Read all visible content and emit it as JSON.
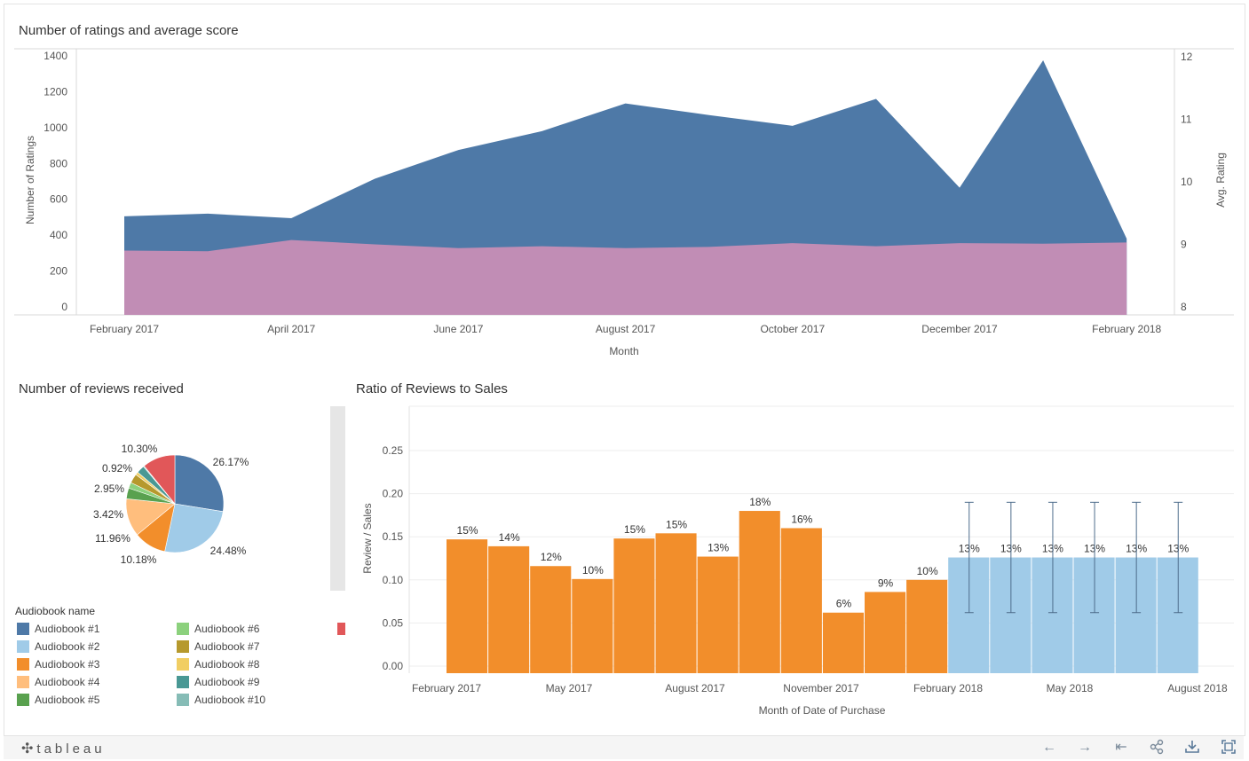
{
  "charts_titles": {
    "ratings": "Number of ratings and average score",
    "pie": "Number of reviews received",
    "ratio": "Ratio of Reviews to Sales"
  },
  "chart_data": [
    {
      "type": "area",
      "title": "Number of ratings and average score",
      "xlabel": "Month",
      "ylabel": "Number of Ratings",
      "y2label": "Avg. Rating",
      "x": [
        "2017-02",
        "2017-03",
        "2017-04",
        "2017-05",
        "2017-06",
        "2017-07",
        "2017-08",
        "2017-09",
        "2017-10",
        "2017-11",
        "2017-12",
        "2018-01",
        "2018-02"
      ],
      "x_tick_labels": [
        "February 2017",
        "April 2017",
        "June 2017",
        "August 2017",
        "October 2017",
        "December 2017",
        "February 2018"
      ],
      "y_ticks": [
        "0",
        "200",
        "400",
        "600",
        "800",
        "1000",
        "1200",
        "1400"
      ],
      "y2_ticks": [
        "8",
        "9",
        "10",
        "11",
        "12"
      ],
      "ylim": [
        0,
        1450
      ],
      "y2lim": [
        7.92,
        12.24
      ],
      "series": [
        {
          "values": [
            505,
            520,
            495,
            715,
            875,
            980,
            1135,
            1070,
            1010,
            1160,
            665,
            1375,
            380
          ],
          "color": "#4e79a7"
        },
        {
          "axis": "right",
          "values": [
            8.9,
            8.89,
            9.07,
            9.0,
            8.94,
            8.97,
            8.94,
            8.96,
            9.02,
            8.97,
            9.02,
            9.01,
            9.03
          ],
          "color": "#c18db5"
        }
      ]
    },
    {
      "type": "pie",
      "title": "Number of reviews received",
      "legend_title": "Audiobook name",
      "slices": [
        {
          "name": "Audiobook #1",
          "value": 26.17,
          "label": "26.17%",
          "color": "#4e79a7"
        },
        {
          "name": "Audiobook #2",
          "value": 24.48,
          "label": "24.48%",
          "color": "#a0cbe8"
        },
        {
          "name": "Audiobook #3",
          "value": 10.18,
          "label": "10.18%",
          "color": "#f28e2b"
        },
        {
          "name": "Audiobook #4",
          "value": 11.96,
          "label": "11.96%",
          "color": "#ffbe7d"
        },
        {
          "name": "Audiobook #5",
          "value": 3.42,
          "label": "3.42%",
          "color": "#59a14f"
        },
        {
          "name": "Audiobook #6",
          "value": 1.8,
          "label": "",
          "color": "#8cd17d"
        },
        {
          "name": "Audiobook #7",
          "value": 2.95,
          "label": "2.95%",
          "color": "#b6992d"
        },
        {
          "name": "Audiobook #8",
          "value": 0.92,
          "label": "0.92%",
          "color": "#f1ce63"
        },
        {
          "name": "Audiobook #9",
          "value": 2.5,
          "label": "",
          "color": "#499894"
        },
        {
          "name": "Audiobook #10",
          "value": 0.3,
          "label": "",
          "color": "#86bcb6"
        },
        {
          "name": "",
          "value": 10.3,
          "label": "10.30%",
          "color": "#e15759"
        }
      ]
    },
    {
      "type": "bar",
      "title": "Ratio of Reviews to Sales",
      "xlabel": "Month of Date of Purchase",
      "ylabel": "Review / Sales",
      "ylim": [
        0,
        0.3
      ],
      "y_ticks": [
        "0.00",
        "0.05",
        "0.10",
        "0.15",
        "0.20",
        "0.25"
      ],
      "x_tick_labels": [
        "February 2017",
        "May 2017",
        "August 2017",
        "November 2017",
        "February 2018",
        "May 2018",
        "August 2018"
      ],
      "categories": [
        "2017-02",
        "2017-03",
        "2017-04",
        "2017-05",
        "2017-06",
        "2017-07",
        "2017-08",
        "2017-09",
        "2017-10",
        "2017-11",
        "2017-12",
        "2018-01",
        "2018-02",
        "2018-03",
        "2018-04",
        "2018-05",
        "2018-06",
        "2018-07"
      ],
      "series": [
        {
          "name": "actual",
          "color": "#f28e2b",
          "values": [
            0.147,
            0.139,
            0.116,
            0.101,
            0.148,
            0.154,
            0.127,
            0.18,
            0.16,
            0.062,
            0.086,
            0.1,
            null,
            null,
            null,
            null,
            null,
            null
          ],
          "labels": [
            "15%",
            "14%",
            "12%",
            "10%",
            "15%",
            "15%",
            "13%",
            "18%",
            "16%",
            "6%",
            "9%",
            "10%",
            "",
            "",
            "",
            "",
            "",
            ""
          ]
        },
        {
          "name": "forecast",
          "color": "#a0cbe8",
          "values": [
            null,
            null,
            null,
            null,
            null,
            null,
            null,
            null,
            null,
            null,
            null,
            null,
            0.126,
            0.126,
            0.126,
            0.126,
            0.126,
            0.126
          ],
          "labels": [
            "",
            "",
            "",
            "",
            "",
            "",
            "",
            "",
            "",
            "",
            "",
            "",
            "13%",
            "13%",
            "13%",
            "13%",
            "13%",
            "13%"
          ],
          "error_low": 0.062,
          "error_high": 0.19
        }
      ]
    }
  ],
  "footer": {
    "logo_text": "tableau",
    "icons": [
      "undo-icon",
      "redo-icon",
      "revert-icon",
      "share-icon",
      "download-icon",
      "fullscreen-icon"
    ]
  }
}
